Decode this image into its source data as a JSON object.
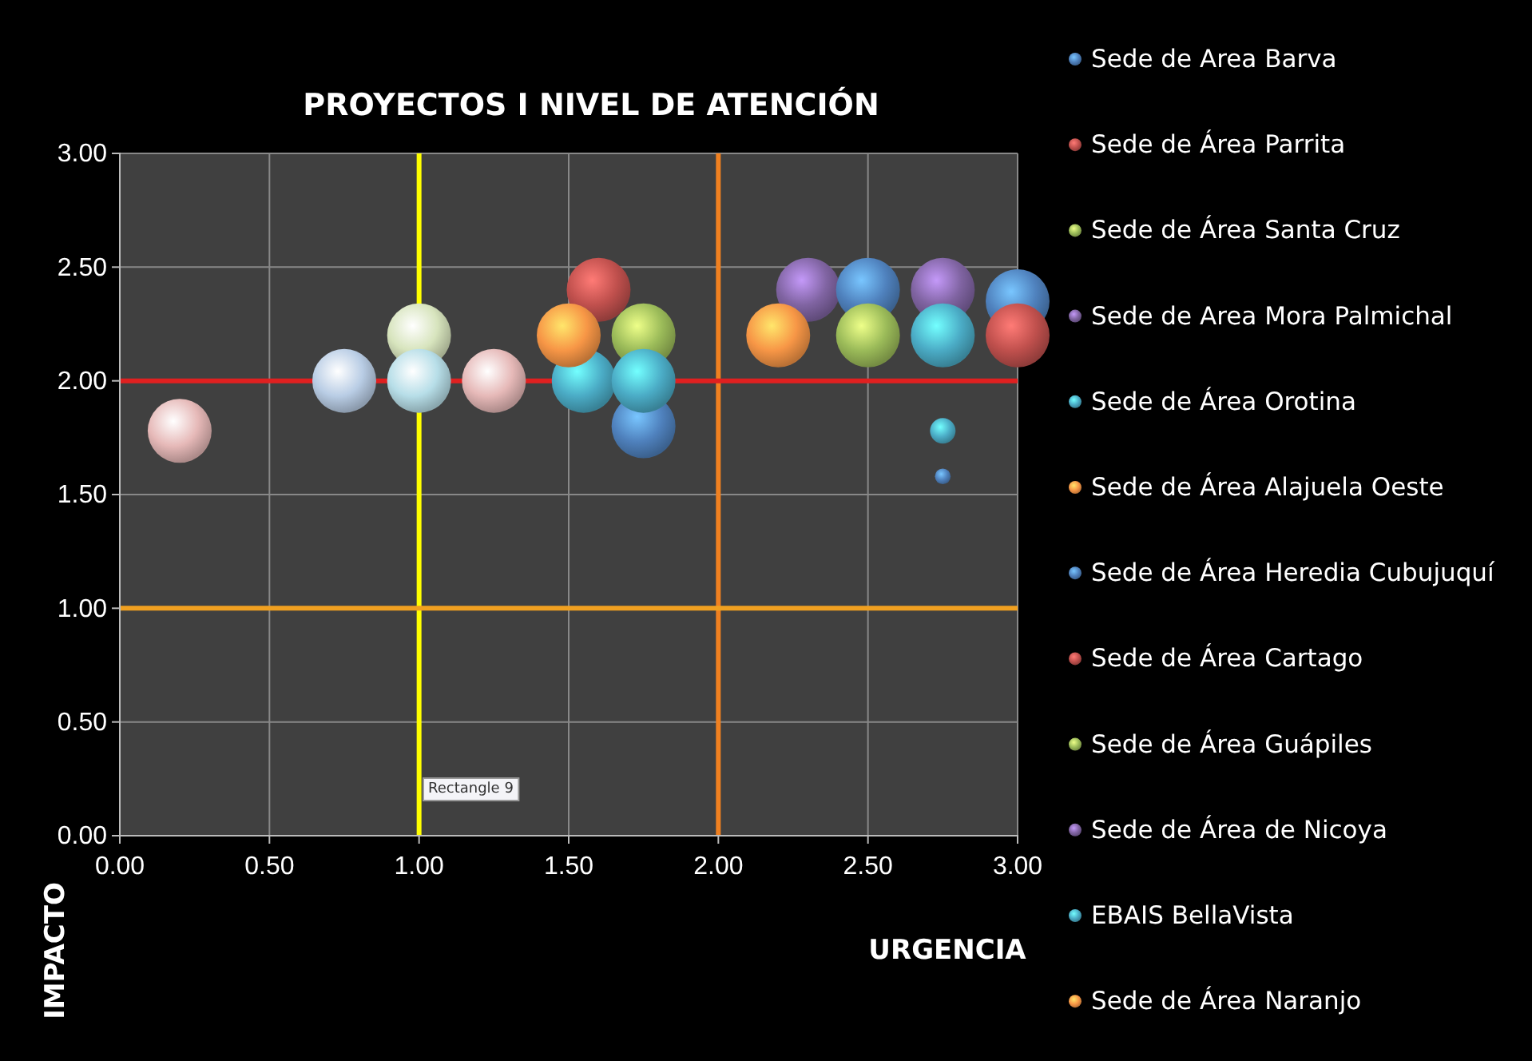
{
  "chart_data": {
    "type": "bubble",
    "title": "PROYECTOS I NIVEL DE ATENCIÓN",
    "xlabel": "URGENCIA",
    "ylabel": "IMPACTO",
    "xlim": [
      0,
      3
    ],
    "xticks": [
      {
        "value": 0,
        "label": "0.00"
      },
      {
        "value": 0.5,
        "label": "0.50"
      },
      {
        "value": 1,
        "label": "1.00"
      },
      {
        "value": 1.5,
        "label": "1.50"
      },
      {
        "value": 2,
        "label": "2.00"
      },
      {
        "value": 2.5,
        "label": "2.50"
      },
      {
        "value": 3,
        "label": "3.00"
      }
    ],
    "ylim": [
      0,
      3
    ],
    "yticks": [
      {
        "value": 0,
        "label": "0.00"
      },
      {
        "value": 0.5,
        "label": "0.50"
      },
      {
        "value": 1,
        "label": "1.00"
      },
      {
        "value": 1.5,
        "label": "1.50"
      },
      {
        "value": 2,
        "label": "2.00"
      },
      {
        "value": 2.5,
        "label": "2.50"
      },
      {
        "value": 3,
        "label": "3.00"
      }
    ],
    "grid": true,
    "legend": "right",
    "series": [
      {
        "name": "Sede de Area Barva",
        "color": "#4f81bd",
        "x": [
          2.75,
          3.0
        ],
        "values": [
          1.58,
          2.35
        ],
        "sizes": [
          0.06,
          1
        ]
      },
      {
        "name": "Sede de Área Parrita",
        "color": "#c0504d",
        "x": [
          1.6
        ],
        "values": [
          2.4
        ],
        "sizes": [
          1
        ]
      },
      {
        "name": "Sede de Área Santa Cruz",
        "color": "#9bbb59",
        "x": [
          1.75
        ],
        "values": [
          2.2
        ],
        "sizes": [
          1
        ]
      },
      {
        "name": "Sede de Area Mora Palmichal",
        "color": "#8064a2",
        "x": [
          2.3
        ],
        "values": [
          2.4
        ],
        "sizes": [
          1
        ]
      },
      {
        "name": "Sede de Área Orotina",
        "color": "#4bacc6",
        "x": [
          2.75,
          1.55
        ],
        "values": [
          1.78,
          2.0
        ],
        "sizes": [
          0.16,
          1
        ]
      },
      {
        "name": "Sede de Área Alajuela Oeste",
        "color": "#f79646",
        "x": [
          1.5
        ],
        "values": [
          2.2
        ],
        "sizes": [
          1
        ]
      },
      {
        "name": "Sede de Área Heredia Cubujuquí",
        "color": "#4f81bd",
        "x": [
          1.75,
          2.5
        ],
        "values": [
          1.8,
          2.4
        ],
        "sizes": [
          1,
          1
        ]
      },
      {
        "name": "Sede de Área Cartago",
        "color": "#c0504d",
        "x": [
          3.0
        ],
        "values": [
          2.2
        ],
        "sizes": [
          1
        ]
      },
      {
        "name": "Sede de Área Guápiles",
        "color": "#9bbb59",
        "x": [
          2.5
        ],
        "values": [
          2.2
        ],
        "sizes": [
          1
        ]
      },
      {
        "name": "Sede de Área de Nicoya",
        "color": "#8064a2",
        "x": [
          2.75
        ],
        "values": [
          2.4
        ],
        "sizes": [
          1
        ]
      },
      {
        "name": "EBAIS BellaVista",
        "color": "#4bacc6",
        "x": [
          2.75,
          1.75
        ],
        "values": [
          2.2,
          2.0
        ],
        "sizes": [
          1,
          1
        ]
      },
      {
        "name": "Sede de Área Naranjo",
        "color": "#f79646",
        "x": [
          2.2
        ],
        "values": [
          2.2
        ],
        "sizes": [
          1
        ]
      },
      {
        "color": "#e6b9b8",
        "x": [
          0.2,
          1.25
        ],
        "values": [
          1.78,
          2.0
        ],
        "sizes": [
          1,
          1
        ]
      },
      {
        "color": "#b9cde5",
        "x": [
          0.75
        ],
        "values": [
          2.0
        ],
        "sizes": [
          1
        ]
      },
      {
        "color": "#d7e4bd",
        "x": [
          1.0
        ],
        "values": [
          2.2
        ],
        "sizes": [
          1
        ]
      },
      {
        "color": "#b7dee8",
        "x": [
          1.0
        ],
        "values": [
          2.0
        ],
        "sizes": [
          1
        ]
      }
    ],
    "ref_lines": [
      {
        "axis": "x",
        "value": 1,
        "color": "#ffff00"
      },
      {
        "axis": "x",
        "value": 2,
        "color": "#f08020"
      },
      {
        "axis": "y",
        "value": 1,
        "color": "#f0a020"
      },
      {
        "axis": "y",
        "value": 2,
        "color": "#e02020"
      }
    ],
    "annotations": [
      "Rectangle 9"
    ]
  }
}
